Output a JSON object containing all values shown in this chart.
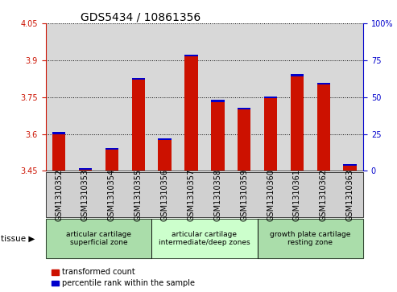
{
  "title": "GDS5434 / 10861356",
  "samples": [
    "GSM1310352",
    "GSM1310353",
    "GSM1310354",
    "GSM1310355",
    "GSM1310356",
    "GSM1310357",
    "GSM1310358",
    "GSM1310359",
    "GSM1310360",
    "GSM1310361",
    "GSM1310362",
    "GSM1310363"
  ],
  "red_values": [
    3.6,
    3.455,
    3.535,
    3.82,
    3.575,
    3.915,
    3.73,
    3.7,
    3.745,
    3.835,
    3.8,
    3.47
  ],
  "blue_values": [
    3.608,
    3.462,
    3.542,
    3.828,
    3.583,
    3.923,
    3.738,
    3.708,
    3.753,
    3.843,
    3.808,
    3.478
  ],
  "ymin": 3.45,
  "ymax": 4.05,
  "y_ticks_left": [
    3.45,
    3.6,
    3.75,
    3.9,
    4.05
  ],
  "y_ticks_right_vals": [
    0,
    25,
    50,
    75,
    100
  ],
  "bar_color_red": "#cc1100",
  "bar_color_blue": "#0000cc",
  "tissue_groups": [
    {
      "label": "articular cartilage\nsuperficial zone",
      "start": 0,
      "end": 3,
      "color": "#aaddaa"
    },
    {
      "label": "articular cartilage\nintermediate/deep zones",
      "start": 4,
      "end": 7,
      "color": "#ccffcc"
    },
    {
      "label": "growth plate cartilage\nresting zone",
      "start": 8,
      "end": 11,
      "color": "#aaddaa"
    }
  ],
  "legend_items": [
    {
      "label": "transformed count",
      "color": "#cc1100"
    },
    {
      "label": "percentile rank within the sample",
      "color": "#0000cc"
    }
  ],
  "title_fontsize": 10,
  "tick_fontsize": 7,
  "bar_width": 0.5
}
